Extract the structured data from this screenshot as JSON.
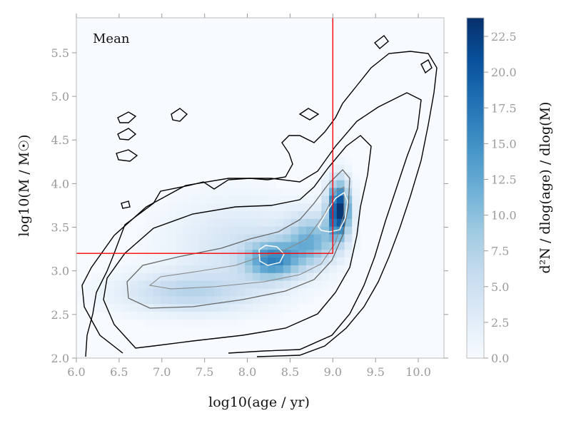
{
  "chart_data": {
    "type": "heatmap",
    "annotation": "Mean",
    "xlabel": "log10(age / yr)",
    "ylabel": "log10(M / M☉)",
    "xlim": [
      6.0,
      10.3
    ],
    "ylim": [
      2.0,
      5.9
    ],
    "x_ticks": [
      "6.0",
      "6.5",
      "7.0",
      "7.5",
      "8.0",
      "8.5",
      "9.0",
      "9.5",
      "10.0"
    ],
    "y_ticks": [
      "2.0",
      "2.5",
      "3.0",
      "3.5",
      "4.0",
      "4.5",
      "5.0",
      "5.5"
    ],
    "colorbar": {
      "label": "d²N / dlog(age) / dlog(M)",
      "range": [
        0.0,
        23.8
      ],
      "ticks": [
        "0.0",
        "2.5",
        "5.0",
        "7.5",
        "10.0",
        "12.5",
        "15.0",
        "17.5",
        "20.0",
        "22.5"
      ],
      "colormap": [
        "#f7fbff",
        "#deebf7",
        "#c6dbef",
        "#9ecae1",
        "#6baed6",
        "#4292c6",
        "#2171b5",
        "#08519c",
        "#08306b"
      ]
    },
    "reference_lines": {
      "color": "#ff0000",
      "vertical_x": 9.0,
      "horizontal_y": 3.2
    },
    "density_peaks": [
      {
        "x": 7.3,
        "y": 2.75,
        "peak": 6.5,
        "sx": 0.55,
        "sy": 0.16
      },
      {
        "x": 8.3,
        "y": 3.12,
        "peak": 13.5,
        "sx": 0.22,
        "sy": 0.15
      },
      {
        "x": 8.75,
        "y": 3.35,
        "peak": 10.5,
        "sx": 0.2,
        "sy": 0.2
      },
      {
        "x": 9.07,
        "y": 3.7,
        "peak": 23.5,
        "sx": 0.09,
        "sy": 0.22
      },
      {
        "x": 7.9,
        "y": 3.3,
        "peak": 4.0,
        "sx": 0.55,
        "sy": 0.35
      }
    ]
  }
}
